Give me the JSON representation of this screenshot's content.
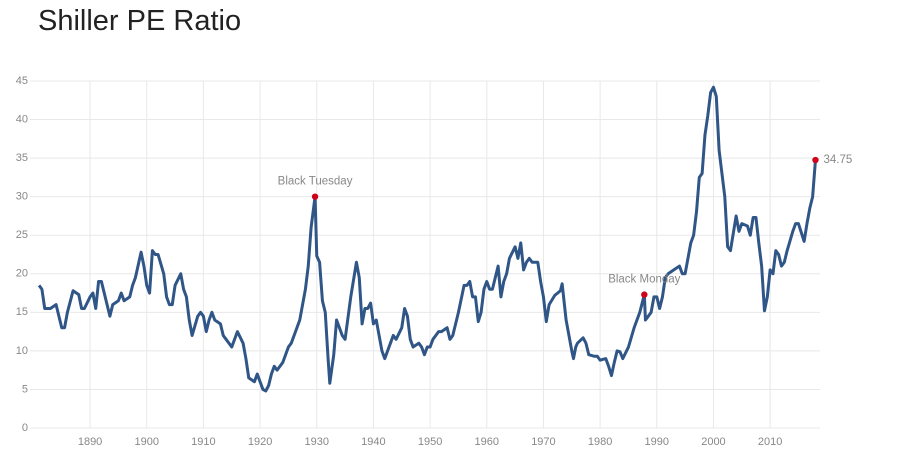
{
  "chart_data": {
    "type": "line",
    "title": "Shiller PE Ratio",
    "x": [
      1881,
      1881.5,
      1882,
      1883,
      1884,
      1885,
      1885.5,
      1886,
      1887,
      1888,
      1888.5,
      1889,
      1890,
      1890.5,
      1891,
      1891.5,
      1892,
      1893,
      1893.5,
      1894,
      1895,
      1895.5,
      1896,
      1897,
      1897.5,
      1898,
      1899,
      1899.5,
      1900,
      1900.5,
      1901,
      1901.5,
      1902,
      1903,
      1903.5,
      1904,
      1904.5,
      1905,
      1906,
      1906.5,
      1907,
      1907.5,
      1908,
      1909,
      1909.5,
      1910,
      1910.5,
      1911,
      1911.5,
      1912,
      1913,
      1913.5,
      1914,
      1915,
      1916,
      1917,
      1917.5,
      1918,
      1919,
      1919.5,
      1920,
      1920.5,
      1921,
      1921.5,
      1922,
      1922.5,
      1923,
      1924,
      1924.5,
      1925,
      1925.5,
      1926,
      1927,
      1928,
      1928.5,
      1929,
      1929.7,
      1930,
      1930.5,
      1931,
      1931.5,
      1932,
      1932.3,
      1933,
      1933.5,
      1934,
      1934.5,
      1935,
      1936,
      1937,
      1937.5,
      1938,
      1938.5,
      1939,
      1939.5,
      1940,
      1940.5,
      1941,
      1941.5,
      1942,
      1943,
      1943.5,
      1944,
      1945,
      1945.5,
      1946,
      1946.5,
      1947,
      1948,
      1948.5,
      1949,
      1949.5,
      1950,
      1950.5,
      1951,
      1951.5,
      1952,
      1953,
      1953.5,
      1954,
      1955,
      1956,
      1956.5,
      1957,
      1957.5,
      1958,
      1958.5,
      1959,
      1959.5,
      1960,
      1960.5,
      1961,
      1962,
      1962.5,
      1963,
      1963.5,
      1964,
      1965,
      1965.5,
      1966,
      1966.5,
      1967,
      1967.5,
      1968,
      1969,
      1969.5,
      1970,
      1970.5,
      1971,
      1972,
      1973,
      1973.3,
      1974,
      1975,
      1975.3,
      1975.7,
      1976,
      1977,
      1977.5,
      1978,
      1979,
      1979.5,
      1980,
      1981,
      1981.5,
      1982,
      1982.5,
      1983,
      1983.5,
      1984,
      1985,
      1986,
      1987,
      1987.8,
      1988,
      1988.5,
      1989,
      1989.5,
      1990,
      1990.5,
      1991,
      1991.5,
      1992,
      1993,
      1994,
      1994.5,
      1995,
      1996,
      1996.5,
      1997,
      1997.5,
      1998,
      1998.5,
      1999,
      1999.5,
      2000,
      2000.5,
      2001,
      2002,
      2002.5,
      2003,
      2004,
      2004.5,
      2005,
      2006,
      2006.5,
      2007,
      2007.5,
      2008,
      2008.5,
      2009,
      2009.5,
      2010,
      2010.5,
      2011,
      2011.5,
      2012,
      2012.5,
      2013,
      2014,
      2014.5,
      2015,
      2016,
      2016.5,
      2017,
      2017.5,
      2018
    ],
    "series": [
      {
        "name": "Shiller PE Ratio",
        "color": "#2f5687",
        "values": [
          18.5,
          18,
          15.5,
          15.5,
          16,
          13,
          13,
          15,
          17.8,
          17.3,
          15.5,
          15.5,
          17,
          17.5,
          15.5,
          19,
          19,
          16,
          14.5,
          16,
          16.5,
          17.5,
          16.5,
          17,
          18.5,
          19.5,
          22.8,
          21,
          18.5,
          17.5,
          23,
          22.5,
          22.5,
          20,
          17,
          16,
          16,
          18.5,
          20,
          18,
          17,
          14,
          12,
          14.5,
          15,
          14.5,
          12.5,
          14,
          15,
          14,
          13.5,
          12,
          11.5,
          10.5,
          12.5,
          11,
          9,
          6.5,
          6,
          7,
          6,
          5,
          4.8,
          5.5,
          7,
          8,
          7.5,
          8.5,
          9.5,
          10.5,
          11,
          12,
          14,
          18,
          21,
          26,
          30,
          22.3,
          21.5,
          16.5,
          15,
          9,
          5.8,
          9.5,
          14,
          13,
          12,
          11.5,
          17,
          21.5,
          19.5,
          13.5,
          15.5,
          15.5,
          16.2,
          13.5,
          14,
          12,
          10,
          9,
          11,
          12,
          11.5,
          13,
          15.5,
          14.5,
          11.5,
          10.5,
          11,
          10.5,
          9.5,
          10.5,
          10.5,
          11.5,
          12,
          12.5,
          12.5,
          13,
          11.5,
          12,
          15,
          18.5,
          18.5,
          19,
          17,
          17,
          13.8,
          15,
          18,
          19,
          18,
          18,
          21,
          17,
          19,
          20,
          22,
          23.5,
          22,
          24,
          20.5,
          21.5,
          22,
          21.5,
          21.5,
          19,
          17,
          13.8,
          16,
          17.2,
          17.8,
          18.7,
          14,
          10,
          9,
          10.5,
          11,
          11.7,
          11,
          9.5,
          9.3,
          9.3,
          8.8,
          9,
          8,
          6.8,
          8.5,
          10,
          9.9,
          9,
          10.5,
          13,
          15,
          17.3,
          14,
          14.5,
          15,
          17,
          17,
          15.5,
          17,
          19.5,
          20,
          20.5,
          21,
          20,
          20,
          24,
          25,
          28,
          32.5,
          33,
          38,
          40.5,
          43.5,
          44.2,
          43,
          36,
          30,
          23.5,
          23,
          27.5,
          25.5,
          26.5,
          26.2,
          25,
          27.3,
          27.3,
          24,
          21,
          15.2,
          17,
          20.5,
          20,
          23,
          22.5,
          21,
          21.5,
          23,
          25.5,
          26.5,
          26.5,
          24.2,
          26.5,
          28.5,
          30,
          34.75
        ]
      }
    ],
    "annotations": [
      {
        "label": "Black Tuesday",
        "x": 1929.7,
        "y": 30
      },
      {
        "label": "Black Monday",
        "x": 1987.8,
        "y": 17.3
      },
      {
        "label": "34.75",
        "x": 2018,
        "y": 34.75
      }
    ],
    "annotation_color": "#d0021b",
    "xlim": [
      1879.4,
      2018.8
    ],
    "xticks": [
      1890,
      1900,
      1910,
      1920,
      1930,
      1940,
      1950,
      1960,
      1970,
      1980,
      1990,
      2000,
      2010
    ],
    "ylim": [
      0,
      45
    ],
    "yticks": [
      0,
      5,
      10,
      15,
      20,
      25,
      30,
      35,
      40,
      45
    ],
    "grid": true
  }
}
